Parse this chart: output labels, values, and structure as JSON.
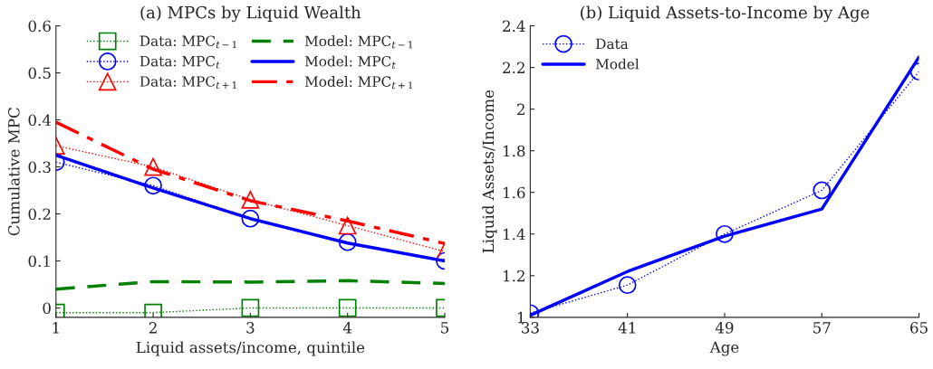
{
  "chart_data": [
    {
      "type": "line",
      "title": "(a) MPCs by Liquid Wealth",
      "xlabel": "Liquid assets/income, quintile",
      "ylabel": "Cumulative MPC",
      "x": [
        1,
        2,
        3,
        4,
        5
      ],
      "xlim": [
        1,
        5
      ],
      "xticks": [
        1,
        2,
        3,
        4,
        5
      ],
      "ylim": [
        -0.02,
        0.6
      ],
      "yticks": [
        0,
        0.1,
        0.2,
        0.3,
        0.4,
        0.5,
        0.6
      ],
      "grid": false,
      "legend": "top",
      "series": [
        {
          "name": "Data: MPC$_{t−1}$",
          "color": "#008000",
          "marker": "square",
          "line_style": "dotted",
          "values": [
            -0.01,
            -0.01,
            0,
            0,
            0
          ]
        },
        {
          "name": "Data: MPC$_{t}$",
          "color": "#0000ff",
          "marker": "circle",
          "line_style": "dotted",
          "values": [
            0.31,
            0.26,
            0.19,
            0.14,
            0.1
          ]
        },
        {
          "name": "Data: MPC$_{t+1}$",
          "color": "#ff0000",
          "marker": "triangle",
          "line_style": "dotted",
          "values": [
            0.345,
            0.3,
            0.23,
            0.175,
            0.12
          ]
        },
        {
          "name": "Model: MPC$_{t−1}$",
          "color": "#008000",
          "marker": "none",
          "line_style": "dashed",
          "values": [
            0.04,
            0.056,
            0.055,
            0.058,
            0.052
          ]
        },
        {
          "name": "Model: MPC$_{t}$",
          "color": "#0000ff",
          "marker": "none",
          "line_style": "solid",
          "values": [
            0.325,
            0.255,
            0.19,
            0.138,
            0.1
          ]
        },
        {
          "name": "Model: MPC$_{t+1}$",
          "color": "#ff0000",
          "marker": "none",
          "line_style": "dashdot",
          "values": [
            0.395,
            0.295,
            0.228,
            0.185,
            0.137
          ]
        }
      ]
    },
    {
      "type": "line",
      "title": "(b) Liquid Assets-to-Income by Age",
      "xlabel": "Age",
      "ylabel": "Liquid Assets/Income",
      "x": [
        33,
        41,
        49,
        57,
        65
      ],
      "xlim": [
        33,
        65
      ],
      "xticks": [
        33,
        41,
        49,
        57,
        65
      ],
      "ylim": [
        1,
        2.4
      ],
      "yticks": [
        1,
        1.2,
        1.4,
        1.6,
        1.8,
        2,
        2.2,
        2.4
      ],
      "grid": false,
      "legend": "top left",
      "series": [
        {
          "name": "Data",
          "color": "#0000ff",
          "marker": "circle",
          "line_style": "dotted",
          "values": [
            1.02,
            1.155,
            1.4,
            1.61,
            2.18
          ]
        },
        {
          "name": "Model",
          "color": "#0000ff",
          "marker": "none",
          "line_style": "solid",
          "values": [
            1.01,
            1.22,
            1.39,
            1.52,
            2.25
          ]
        }
      ]
    }
  ]
}
